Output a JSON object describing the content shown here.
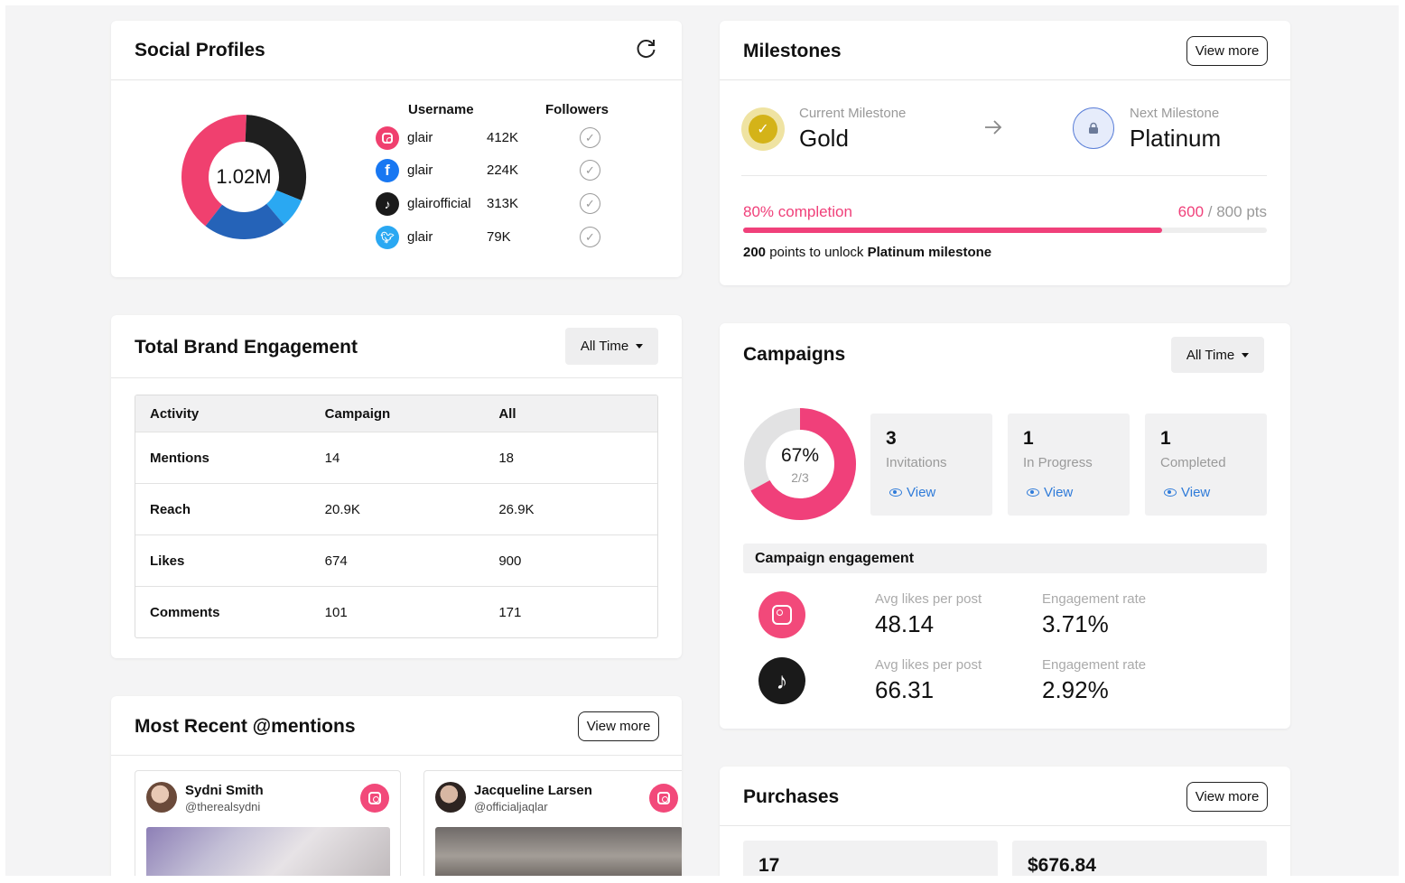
{
  "social_profiles": {
    "title": "Social Profiles",
    "total": "1.02M",
    "col_username": "Username",
    "col_followers": "Followers",
    "donut": [
      {
        "platform": "Instagram",
        "value": 412,
        "color": "#f0406f"
      },
      {
        "platform": "TikTok",
        "value": 313,
        "color": "#1f1f1f"
      },
      {
        "platform": "Twitter",
        "value": 79,
        "color": "#2aa8f2"
      },
      {
        "platform": "Facebook",
        "value": 224,
        "color": "#2563b8"
      }
    ],
    "rows": [
      {
        "icon": "instagram-icon",
        "username": "glair",
        "followers": "412K"
      },
      {
        "icon": "facebook-icon",
        "username": "glair",
        "followers": "224K"
      },
      {
        "icon": "tiktok-icon",
        "username": "glairofficial",
        "followers": "313K"
      },
      {
        "icon": "twitter-icon",
        "username": "glair",
        "followers": "79K"
      }
    ]
  },
  "milestones": {
    "title": "Milestones",
    "view_more": "View more",
    "current_label": "Current Milestone",
    "current_value": "Gold",
    "next_label": "Next Milestone",
    "next_value": "Platinum",
    "completion": "80% completion",
    "progress_fraction": 0.8,
    "points_current": "600",
    "points_total": "/ 800 pts",
    "unlock_prefix": "200",
    "unlock_text": "points to unlock",
    "unlock_target": "Platinum milestone"
  },
  "engagement": {
    "title": "Total Brand Engagement",
    "filter": "All Time",
    "headers": [
      "Activity",
      "Campaign",
      "All"
    ],
    "rows": [
      [
        "Mentions",
        "14",
        "18"
      ],
      [
        "Reach",
        "20.9K",
        "26.9K"
      ],
      [
        "Likes",
        "674",
        "900"
      ],
      [
        "Comments",
        "101",
        "171"
      ]
    ]
  },
  "mentions": {
    "title": "Most Recent @mentions",
    "view_more": "View more",
    "items": [
      {
        "name": "Sydni Smith",
        "handle": "@therealsydni"
      },
      {
        "name": "Jacqueline Larsen",
        "handle": "@officialjaqlar"
      }
    ]
  },
  "campaigns": {
    "title": "Campaigns",
    "filter": "All Time",
    "percent": "67%",
    "ratio": "2/3",
    "progress_fraction": 0.67,
    "accent": "#f0407a",
    "stats": [
      {
        "num": "3",
        "label": "Invitations",
        "action": "View"
      },
      {
        "num": "1",
        "label": "In Progress",
        "action": "View"
      },
      {
        "num": "1",
        "label": "Completed",
        "action": "View"
      }
    ],
    "engagement_title": "Campaign engagement",
    "engagement_rows": [
      {
        "icon": "instagram-icon",
        "likes_label": "Avg likes per post",
        "likes": "48.14",
        "rate_label": "Engagement rate",
        "rate": "3.71%"
      },
      {
        "icon": "tiktok-icon",
        "likes_label": "Avg likes per post",
        "likes": "66.31",
        "rate_label": "Engagement rate",
        "rate": "2.92%"
      }
    ]
  },
  "purchases": {
    "title": "Purchases",
    "view_more": "View more",
    "count": "17",
    "amount": "$676.84"
  }
}
